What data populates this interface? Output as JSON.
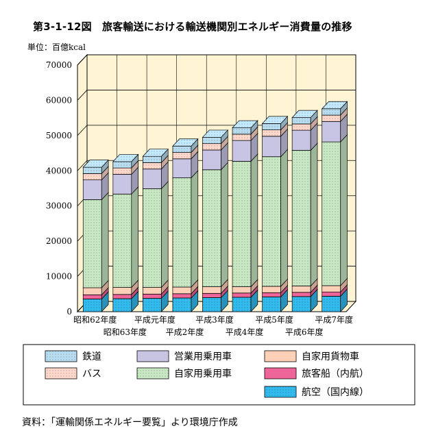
{
  "title": "第3-1-12図　旅客輸送における輸送機関別エネルギー消費量の推移",
  "unit_label": "単位：百億kcal",
  "source": "資料：「運輸関係エネルギー要覧」より環境庁作成",
  "chart_data": {
    "type": "bar",
    "stacked": true,
    "style": "3d-stacked",
    "categories": [
      "昭和62年度",
      "昭和63年度",
      "平成元年度",
      "平成2年度",
      "平成3年度",
      "平成4年度",
      "平成5年度",
      "平成6年度",
      "平成7年度"
    ],
    "ylim": [
      0,
      70000
    ],
    "yticks": [
      0,
      10000,
      20000,
      30000,
      40000,
      50000,
      60000,
      70000
    ],
    "grid": true,
    "legend_position": "bottom",
    "series": [
      {
        "name": "航空（国内線）",
        "color": "#33bbee",
        "pattern": "dots",
        "values": [
          3600,
          3700,
          3800,
          3900,
          4000,
          4100,
          4200,
          4300,
          4400
        ]
      },
      {
        "name": "旅客船（内航）",
        "color": "#ee6699",
        "pattern": "none",
        "values": [
          1200,
          1200,
          1200,
          1200,
          1200,
          1200,
          1200,
          1200,
          1200
        ]
      },
      {
        "name": "自家用貨物車",
        "color": "#ffd0b8",
        "pattern": "none",
        "values": [
          2000,
          2000,
          1900,
          1900,
          1900,
          1800,
          1800,
          1800,
          1800
        ]
      },
      {
        "name": "自家用乗用車",
        "color": "#c8e8c4",
        "pattern": "dots",
        "values": [
          25000,
          26500,
          28000,
          31000,
          33200,
          35600,
          36800,
          38500,
          40800
        ]
      },
      {
        "name": "営業用乗用車",
        "color": "#c8c4e4",
        "pattern": "none",
        "values": [
          5600,
          5600,
          5600,
          5400,
          5600,
          5900,
          5800,
          5700,
          5800
        ]
      },
      {
        "name": "バス",
        "color": "#ffd8cc",
        "pattern": "dots",
        "values": [
          1800,
          1800,
          1800,
          1800,
          1800,
          1800,
          1800,
          1800,
          1800
        ]
      },
      {
        "name": "鉄道",
        "color": "#b8ddf0",
        "pattern": "dots",
        "values": [
          1800,
          1800,
          1800,
          1800,
          1800,
          1800,
          1800,
          1800,
          1800
        ]
      }
    ]
  },
  "legend_order": [
    [
      "鉄道",
      "営業用乗用車",
      "自家用貨物車"
    ],
    [
      "バス",
      "自家用乗用車",
      "旅客船（内航）"
    ],
    [
      "",
      "",
      "航空（国内線）"
    ]
  ]
}
